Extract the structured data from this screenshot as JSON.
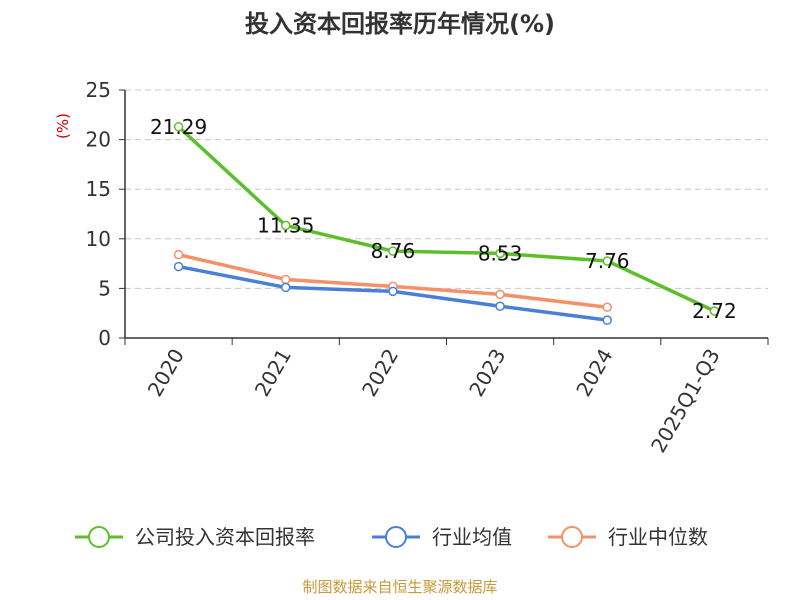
{
  "chart_data": {
    "type": "line",
    "title": "投入资本回报率历年情况(%)",
    "ylabel": "(%)",
    "xlabel": "",
    "categories": [
      "2020",
      "2021",
      "2022",
      "2023",
      "2024",
      "2025Q1-Q3"
    ],
    "ylim": [
      0,
      25
    ],
    "yticks": [
      0,
      5,
      10,
      15,
      20,
      25
    ],
    "grid": true,
    "legend_position": "bottom",
    "series": [
      {
        "name": "公司投入资本回报率",
        "color": "#5cbf2a",
        "values": [
          21.29,
          11.35,
          8.76,
          8.53,
          7.76,
          2.72
        ],
        "labels": [
          "21.29",
          "11.35",
          "8.76",
          "8.53",
          "7.76",
          "2.72"
        ]
      },
      {
        "name": "行业均值",
        "color": "#4a7fd6",
        "values": [
          7.2,
          5.1,
          4.7,
          3.2,
          1.8,
          null
        ]
      },
      {
        "name": "行业中位数",
        "color": "#f59068",
        "values": [
          8.4,
          5.9,
          5.2,
          4.4,
          3.1,
          null
        ]
      }
    ]
  },
  "source": "制图数据来自恒生聚源数据库"
}
